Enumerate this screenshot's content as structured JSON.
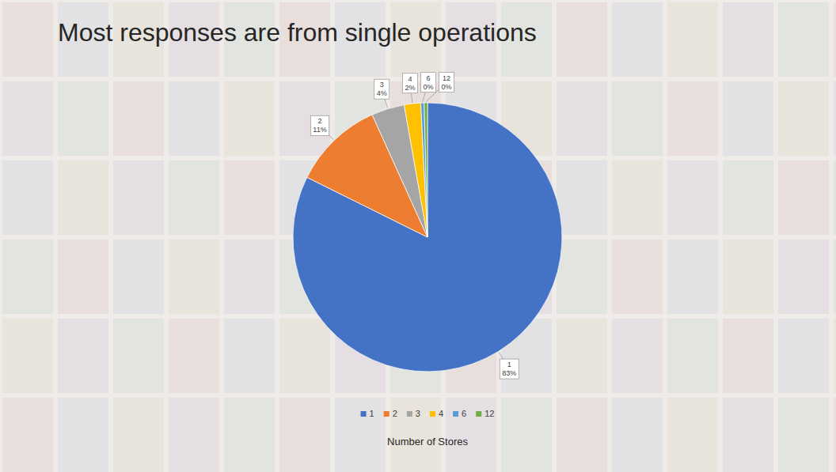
{
  "chart_data": {
    "type": "pie",
    "title": "Most responses are from single operations",
    "categories": [
      "1",
      "2",
      "3",
      "4",
      "6",
      "12"
    ],
    "values": [
      83,
      11,
      4,
      2,
      0.4,
      0.4
    ],
    "value_labels": [
      "83%",
      "11%",
      "4%",
      "2%",
      "0%",
      "0%"
    ],
    "colors": [
      "#4472c4",
      "#ed7d31",
      "#a5a5a5",
      "#ffc000",
      "#5b9bd5",
      "#70ad47"
    ],
    "data_labels": true,
    "legend": "bottom",
    "legend_title": "Number of Stores"
  }
}
